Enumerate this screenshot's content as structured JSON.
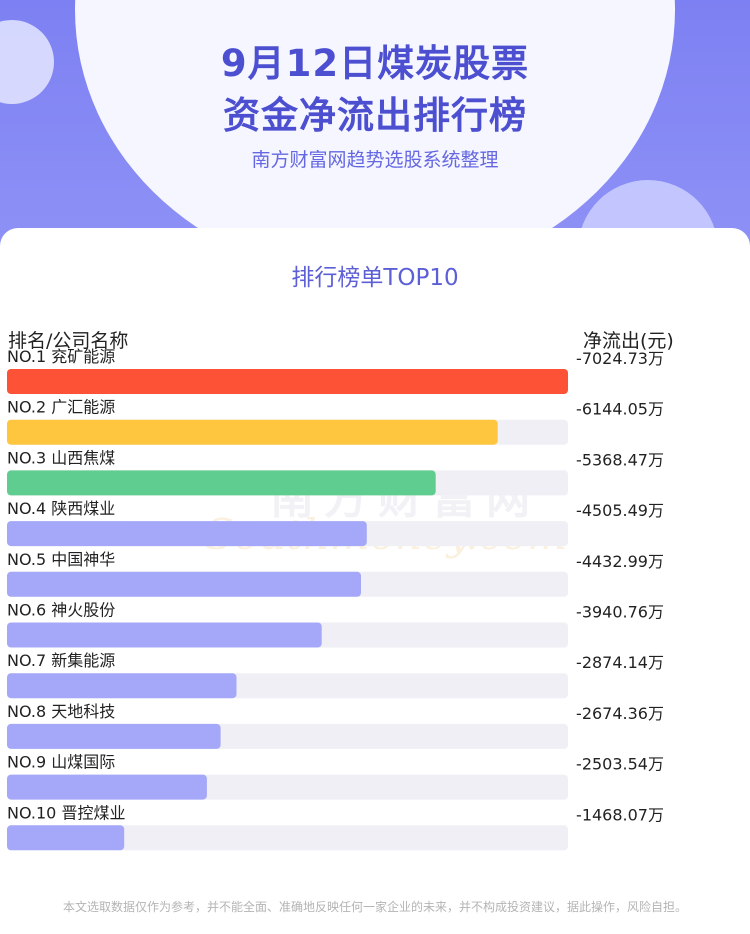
{
  "header": {
    "title_line1": "9月12日煤炭股票",
    "title_line2": "资金净流出排行榜",
    "subtitle": "南方财富网趋势选股系统整理"
  },
  "card": {
    "title": "排行榜单TOP10",
    "col_left": "排名/公司名称",
    "col_right": "净流出(元)"
  },
  "watermark": {
    "text_top": "南方财富网",
    "text_bottom": "Southmoney.com"
  },
  "footer": {
    "disclaimer": "本文选取数据仅作为参考，并不能全面、准确地反映任何一家企业的未来，并不构成投资建议，据此操作，风险自担。"
  },
  "colors": {
    "rank1": "#fd5236",
    "rank2": "#fec53f",
    "rank3": "#5fcd8f",
    "rest": "#a5a8f8",
    "track": "#efeff5"
  },
  "chart_data": {
    "type": "bar",
    "orientation": "horizontal",
    "unit": "万",
    "max_value": 7024.73,
    "rows": [
      {
        "rank": "NO.1",
        "name": "兖矿能源",
        "value": -7024.73,
        "label": "-7024.73万"
      },
      {
        "rank": "NO.2",
        "name": "广汇能源",
        "value": -6144.05,
        "label": "-6144.05万"
      },
      {
        "rank": "NO.3",
        "name": "山西焦煤",
        "value": -5368.47,
        "label": "-5368.47万"
      },
      {
        "rank": "NO.4",
        "name": "陕西煤业",
        "value": -4505.49,
        "label": "-4505.49万"
      },
      {
        "rank": "NO.5",
        "name": "中国神华",
        "value": -4432.99,
        "label": "-4432.99万"
      },
      {
        "rank": "NO.6",
        "name": "神火股份",
        "value": -3940.76,
        "label": "-3940.76万"
      },
      {
        "rank": "NO.7",
        "name": "新集能源",
        "value": -2874.14,
        "label": "-2874.14万"
      },
      {
        "rank": "NO.8",
        "name": "天地科技",
        "value": -2674.36,
        "label": "-2674.36万"
      },
      {
        "rank": "NO.9",
        "name": "山煤国际",
        "value": -2503.54,
        "label": "-2503.54万"
      },
      {
        "rank": "NO.10",
        "name": "晋控煤业",
        "value": -1468.07,
        "label": "-1468.07万"
      }
    ]
  }
}
